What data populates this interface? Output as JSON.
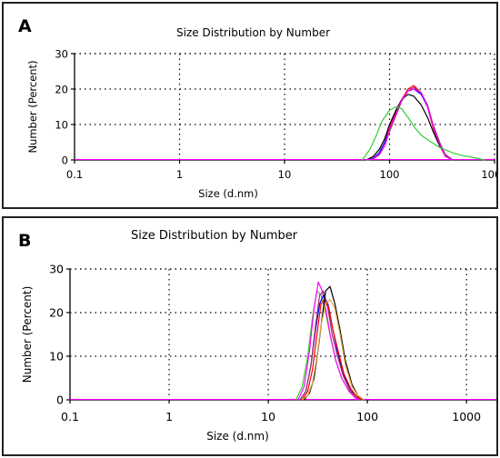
{
  "panels": [
    {
      "label": "A",
      "chart_data": {
        "type": "line",
        "title": "Size Distribution by Number",
        "xlabel": "Size (d.nm)",
        "ylabel": "Number (Percent)",
        "xscale": "log",
        "xlim": [
          0.1,
          1000
        ],
        "ylim": [
          0,
          30
        ],
        "xticks": [
          "0.1",
          "1",
          "10",
          "100",
          "1000"
        ],
        "yticks": [
          "0",
          "10",
          "20",
          "30"
        ],
        "grid": true,
        "series": [
          {
            "color": "#ff0000",
            "x": [
              60,
              70,
              80,
              90,
              100,
              115,
              130,
              150,
              170,
              200,
              230,
              260,
              300,
              340,
              400
            ],
            "y": [
              0,
              0.5,
              2,
              5,
              9,
              13.5,
              17,
              20,
              21,
              19,
              15,
              9,
              4,
              1,
              0
            ]
          },
          {
            "color": "#0000ff",
            "x": [
              60,
              70,
              80,
              90,
              100,
              115,
              130,
              150,
              170,
              200,
              230,
              260,
              300,
              340,
              400
            ],
            "y": [
              0,
              0.5,
              2,
              5,
              8.5,
              13,
              17,
              19.5,
              20,
              18.5,
              15,
              9.5,
              4.5,
              1,
              0
            ]
          },
          {
            "color": "#000000",
            "x": [
              60,
              70,
              80,
              90,
              100,
              115,
              130,
              150,
              170,
              200,
              230,
              260,
              300,
              340,
              400
            ],
            "y": [
              0,
              1,
              3,
              6,
              10,
              14,
              17,
              18.5,
              18,
              15.5,
              12,
              8,
              4,
              1.5,
              0
            ]
          },
          {
            "color": "#993366",
            "x": [
              60,
              70,
              80,
              90,
              100,
              115,
              130,
              150,
              170,
              200,
              230,
              260,
              300,
              340,
              400
            ],
            "y": [
              0,
              0.3,
              1.5,
              4,
              8,
              12.5,
              16.5,
              19.5,
              20.5,
              19,
              15.5,
              10,
              5,
              1.5,
              0
            ]
          },
          {
            "color": "#ff00ff",
            "x": [
              60,
              70,
              80,
              90,
              100,
              115,
              130,
              150,
              170,
              200,
              230,
              260,
              300,
              340,
              400
            ],
            "y": [
              0,
              0.3,
              1.5,
              4,
              8.5,
              13,
              17,
              19.5,
              20,
              19,
              15,
              9.5,
              4.5,
              1,
              0
            ]
          },
          {
            "color": "#33cc33",
            "x": [
              55,
              65,
              75,
              85,
              100,
              115,
              130,
              150,
              175,
              200,
              250,
              300,
              400,
              500,
              600,
              700,
              800
            ],
            "y": [
              0,
              3,
              7,
              11,
              14,
              15,
              14.5,
              12,
              9,
              7,
              5,
              3.5,
              2,
              1.2,
              0.8,
              0.4,
              0
            ]
          }
        ]
      }
    },
    {
      "label": "B",
      "chart_data": {
        "type": "line",
        "title": "Size Distribution by Number",
        "xlabel": "Size (d.nm)",
        "ylabel": "Number (Percent)",
        "xscale": "log",
        "xlim": [
          0.1,
          2000
        ],
        "ylim": [
          0,
          30
        ],
        "xticks": [
          "0.1",
          "1",
          "10",
          "100",
          "1000"
        ],
        "yticks": [
          "0",
          "10",
          "20",
          "30"
        ],
        "grid": true,
        "series": [
          {
            "color": "#33cc33",
            "x": [
              19,
              22,
              25,
              28,
              31,
              34,
              38,
              42,
              48,
              55,
              65,
              75,
              85
            ],
            "y": [
              0,
              3,
              10,
              19,
              25,
              24,
              20,
              15,
              9,
              5,
              2,
              0.5,
              0
            ]
          },
          {
            "color": "#ff00ff",
            "x": [
              20,
              23,
              26,
              29,
              32,
              35,
              38,
              42,
              48,
              55,
              65,
              75,
              85
            ],
            "y": [
              0,
              3,
              11,
              21,
              27,
              25,
              21,
              15,
              9,
              5,
              2,
              0.5,
              0
            ]
          },
          {
            "color": "#0000ff",
            "x": [
              21,
              24,
              27,
              30,
              33,
              36,
              40,
              44,
              50,
              57,
              67,
              77,
              88
            ],
            "y": [
              0,
              2,
              8,
              16,
              22,
              24,
              22,
              17,
              11,
              6,
              2.5,
              0.8,
              0
            ]
          },
          {
            "color": "#993366",
            "x": [
              21,
              24,
              27,
              30,
              33,
              36,
              40,
              44,
              50,
              57,
              67,
              77,
              88
            ],
            "y": [
              0,
              2,
              8,
              17,
              24,
              25,
              21,
              15,
              10,
              5.5,
              2,
              0.7,
              0
            ]
          },
          {
            "color": "#ff0000",
            "x": [
              22,
              25,
              28,
              31,
              34,
              37,
              41,
              45,
              51,
              58,
              68,
              78,
              90
            ],
            "y": [
              0,
              2,
              7,
              15,
              22,
              23,
              21,
              16,
              11,
              6,
              2.5,
              0.8,
              0
            ]
          },
          {
            "color": "#000000",
            "x": [
              23,
              26,
              29,
              32,
              35,
              38,
              42,
              47,
              53,
              60,
              70,
              80,
              92
            ],
            "y": [
              0,
              1.5,
              5,
              12,
              19,
              25,
              26,
              22,
              16,
              9,
              3.5,
              1,
              0
            ]
          },
          {
            "color": "#e3a94a",
            "x": [
              22,
              25,
              28,
              31,
              34,
              38,
              42,
              47,
              53,
              60,
              70,
              80,
              92
            ],
            "y": [
              0,
              1,
              4,
              10,
              17,
              22,
              23,
              21,
              15,
              8,
              3,
              1,
              0
            ]
          }
        ]
      }
    }
  ]
}
